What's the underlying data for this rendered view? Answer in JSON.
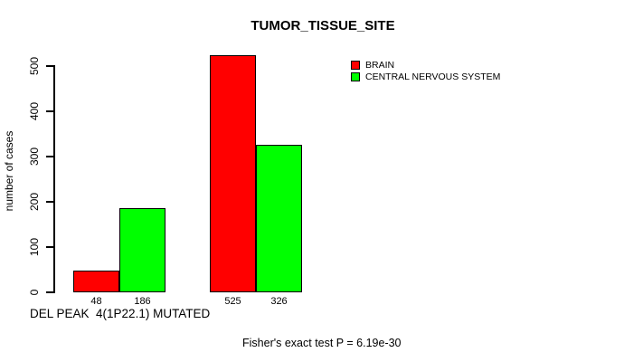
{
  "chart_data": {
    "type": "bar",
    "title": "TUMOR_TISSUE_SITE",
    "xlabel": "",
    "ylabel": "number of cases",
    "ylim": [
      0,
      500
    ],
    "yticks": [
      0,
      100,
      200,
      300,
      400,
      500
    ],
    "grid": false,
    "legend_position": "top-right",
    "bar_value_labels_shown": true,
    "series": [
      {
        "name": "BRAIN",
        "color": "#FF0000",
        "values": [
          48,
          525
        ]
      },
      {
        "name": "CENTRAL NERVOUS SYSTEM",
        "color": "#00FF00",
        "values": [
          186,
          326
        ]
      }
    ],
    "x_annotation": "DEL PEAK  4(1P22.1) MUTATED",
    "footnote": "Fisher's exact test P = 6.19e-30"
  },
  "colors": {
    "background": "#FFFFFF",
    "axis": "#000000",
    "bar_border": "#000000"
  }
}
